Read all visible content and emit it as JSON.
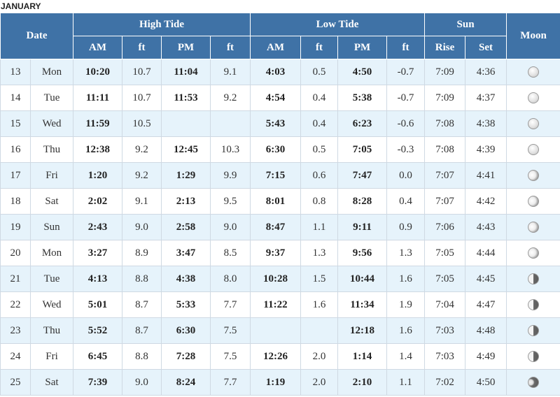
{
  "month": "JANUARY",
  "header": {
    "date": "Date",
    "high_tide": "High Tide",
    "low_tide": "Low Tide",
    "sun": "Sun",
    "moon": "Moon",
    "am": "AM",
    "pm": "PM",
    "ft": "ft",
    "rise": "Rise",
    "set": "Set"
  },
  "rows": [
    {
      "day": "13",
      "weekday": "Mon",
      "high_am": "10:20",
      "high_am_ft": "10.7",
      "high_pm": "11:04",
      "high_pm_ft": "9.1",
      "low_am": "4:03",
      "low_am_ft": "0.5",
      "low_pm": "4:50",
      "low_pm_ft": "-0.7",
      "sunrise": "7:09",
      "sunset": "4:36",
      "moon_icon": "full-moon-icon"
    },
    {
      "day": "14",
      "weekday": "Tue",
      "high_am": "11:11",
      "high_am_ft": "10.7",
      "high_pm": "11:53",
      "high_pm_ft": "9.2",
      "low_am": "4:54",
      "low_am_ft": "0.4",
      "low_pm": "5:38",
      "low_pm_ft": "-0.7",
      "sunrise": "7:09",
      "sunset": "4:37",
      "moon_icon": "full-moon-icon"
    },
    {
      "day": "15",
      "weekday": "Wed",
      "high_am": "11:59",
      "high_am_ft": "10.5",
      "high_pm": "",
      "high_pm_ft": "",
      "low_am": "5:43",
      "low_am_ft": "0.4",
      "low_pm": "6:23",
      "low_pm_ft": "-0.6",
      "sunrise": "7:08",
      "sunset": "4:38",
      "moon_icon": "full-moon-icon"
    },
    {
      "day": "16",
      "weekday": "Thu",
      "high_am": "12:38",
      "high_am_ft": "9.2",
      "high_pm": "12:45",
      "high_pm_ft": "10.3",
      "low_am": "6:30",
      "low_am_ft": "0.5",
      "low_pm": "7:05",
      "low_pm_ft": "-0.3",
      "sunrise": "7:08",
      "sunset": "4:39",
      "moon_icon": "full-moon-icon"
    },
    {
      "day": "17",
      "weekday": "Fri",
      "high_am": "1:20",
      "high_am_ft": "9.2",
      "high_pm": "1:29",
      "high_pm_ft": "9.9",
      "low_am": "7:15",
      "low_am_ft": "0.6",
      "low_pm": "7:47",
      "low_pm_ft": "0.0",
      "sunrise": "7:07",
      "sunset": "4:41",
      "moon_icon": "waning-gibbous-moon-icon"
    },
    {
      "day": "18",
      "weekday": "Sat",
      "high_am": "2:02",
      "high_am_ft": "9.1",
      "high_pm": "2:13",
      "high_pm_ft": "9.5",
      "low_am": "8:01",
      "low_am_ft": "0.8",
      "low_pm": "8:28",
      "low_pm_ft": "0.4",
      "sunrise": "7:07",
      "sunset": "4:42",
      "moon_icon": "waning-gibbous-moon-icon"
    },
    {
      "day": "19",
      "weekday": "Sun",
      "high_am": "2:43",
      "high_am_ft": "9.0",
      "high_pm": "2:58",
      "high_pm_ft": "9.0",
      "low_am": "8:47",
      "low_am_ft": "1.1",
      "low_pm": "9:11",
      "low_pm_ft": "0.9",
      "sunrise": "7:06",
      "sunset": "4:43",
      "moon_icon": "waning-gibbous-moon-icon"
    },
    {
      "day": "20",
      "weekday": "Mon",
      "high_am": "3:27",
      "high_am_ft": "8.9",
      "high_pm": "3:47",
      "high_pm_ft": "8.5",
      "low_am": "9:37",
      "low_am_ft": "1.3",
      "low_pm": "9:56",
      "low_pm_ft": "1.3",
      "sunrise": "7:05",
      "sunset": "4:44",
      "moon_icon": "waning-gibbous-moon-icon"
    },
    {
      "day": "21",
      "weekday": "Tue",
      "high_am": "4:13",
      "high_am_ft": "8.8",
      "high_pm": "4:38",
      "high_pm_ft": "8.0",
      "low_am": "10:28",
      "low_am_ft": "1.5",
      "low_pm": "10:44",
      "low_pm_ft": "1.6",
      "sunrise": "7:05",
      "sunset": "4:45",
      "moon_icon": "last-quarter-moon-icon"
    },
    {
      "day": "22",
      "weekday": "Wed",
      "high_am": "5:01",
      "high_am_ft": "8.7",
      "high_pm": "5:33",
      "high_pm_ft": "7.7",
      "low_am": "11:22",
      "low_am_ft": "1.6",
      "low_pm": "11:34",
      "low_pm_ft": "1.9",
      "sunrise": "7:04",
      "sunset": "4:47",
      "moon_icon": "last-quarter-moon-icon"
    },
    {
      "day": "23",
      "weekday": "Thu",
      "high_am": "5:52",
      "high_am_ft": "8.7",
      "high_pm": "6:30",
      "high_pm_ft": "7.5",
      "low_am": "",
      "low_am_ft": "",
      "low_pm": "12:18",
      "low_pm_ft": "1.6",
      "sunrise": "7:03",
      "sunset": "4:48",
      "moon_icon": "last-quarter-moon-icon"
    },
    {
      "day": "24",
      "weekday": "Fri",
      "high_am": "6:45",
      "high_am_ft": "8.8",
      "high_pm": "7:28",
      "high_pm_ft": "7.5",
      "low_am": "12:26",
      "low_am_ft": "2.0",
      "low_pm": "1:14",
      "low_pm_ft": "1.4",
      "sunrise": "7:03",
      "sunset": "4:49",
      "moon_icon": "last-quarter-moon-icon"
    },
    {
      "day": "25",
      "weekday": "Sat",
      "high_am": "7:39",
      "high_am_ft": "9.0",
      "high_pm": "8:24",
      "high_pm_ft": "7.7",
      "low_am": "1:19",
      "low_am_ft": "2.0",
      "low_pm": "2:10",
      "low_pm_ft": "1.1",
      "sunrise": "7:02",
      "sunset": "4:50",
      "moon_icon": "waning-crescent-moon-icon"
    }
  ]
}
